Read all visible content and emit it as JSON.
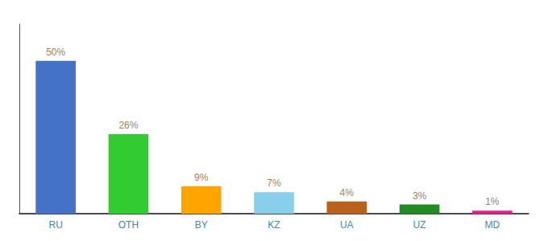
{
  "chart_data": {
    "type": "bar",
    "categories": [
      "RU",
      "OTH",
      "BY",
      "KZ",
      "UA",
      "UZ",
      "MD"
    ],
    "values": [
      50,
      26,
      9,
      7,
      4,
      3,
      1
    ],
    "value_labels": [
      "50%",
      "26%",
      "9%",
      "7%",
      "4%",
      "3%",
      "1%"
    ],
    "colors": [
      "#4472c4",
      "#33cc33",
      "#ffa500",
      "#87ceeb",
      "#b8621b",
      "#228b22",
      "#e91e8c"
    ],
    "ylim": [
      0,
      62
    ],
    "tick_labels": "x",
    "grid": false,
    "data_labels": true
  }
}
